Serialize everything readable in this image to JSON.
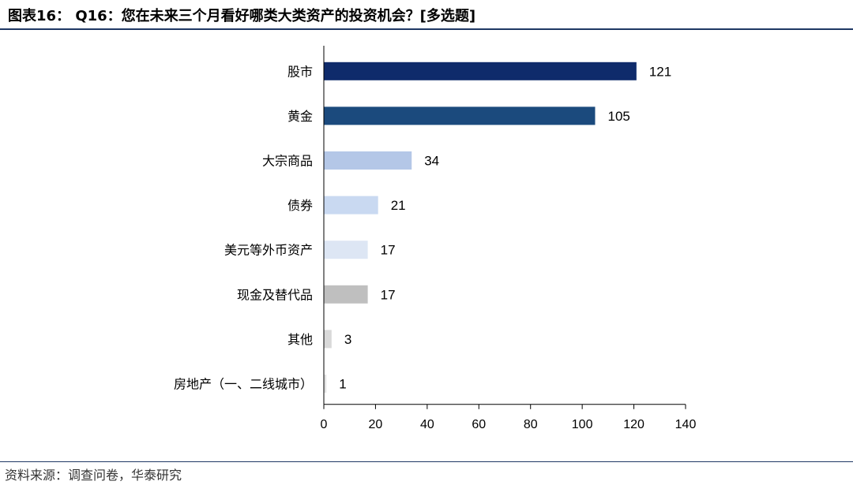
{
  "header": {
    "title": "图表16：  Q16：您在未来三个月看好哪类大类资产的投资机会？[多选题]"
  },
  "footer": {
    "source": "资料来源：调查问卷，华泰研究"
  },
  "chart_data": {
    "type": "bar",
    "orientation": "horizontal",
    "categories": [
      "股市",
      "黄金",
      "大宗商品",
      "债券",
      "美元等外币资产",
      "现金及替代品",
      "其他",
      "房地产（一、二线城市）"
    ],
    "values": [
      121,
      105,
      34,
      21,
      17,
      17,
      3,
      1
    ],
    "colors": [
      "#0f2b6b",
      "#1b4a7d",
      "#b4c7e7",
      "#c9d9f1",
      "#dde6f4",
      "#bfbfbf",
      "#d9d9d9",
      "#e3e3e3"
    ],
    "xlim": [
      0,
      140
    ],
    "xticks": [
      0,
      20,
      40,
      60,
      80,
      100,
      120,
      140
    ],
    "grid": false,
    "legend": "none"
  }
}
